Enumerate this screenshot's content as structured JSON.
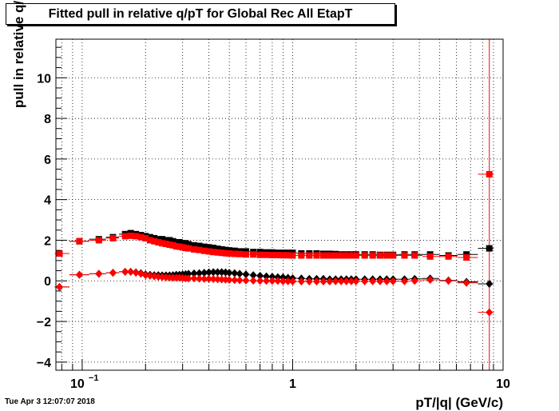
{
  "chart_data": {
    "type": "scatter",
    "title": "Fitted pull in relative q/pT for Global Rec All EtapT",
    "xlabel": "pT/|q| (GeV/c)",
    "ylabel": "pull in relative q/pT",
    "x_scale": "log",
    "xlim": [
      0.075,
      10
    ],
    "ylim": [
      -4.4,
      11.9
    ],
    "grid": true,
    "x_ticks": [
      {
        "value": 0.1,
        "label": "10",
        "sup": "−1"
      },
      {
        "value": 1,
        "label": "1"
      },
      {
        "value": 10,
        "label": "10"
      }
    ],
    "y_ticks": [
      -4,
      -2,
      0,
      2,
      4,
      6,
      8,
      10
    ],
    "timestamp": "Tue Apr  3 12:07:07 2018",
    "series": [
      {
        "color": "#000000",
        "marker": "square",
        "x": [
          0.078,
          0.097,
          0.12,
          0.14,
          0.16,
          0.17,
          0.18,
          0.19,
          0.2,
          0.21,
          0.22,
          0.23,
          0.24,
          0.25,
          0.26,
          0.27,
          0.28,
          0.29,
          0.3,
          0.31,
          0.32,
          0.34,
          0.36,
          0.38,
          0.4,
          0.42,
          0.44,
          0.46,
          0.48,
          0.5,
          0.53,
          0.56,
          0.6,
          0.65,
          0.7,
          0.75,
          0.8,
          0.85,
          0.9,
          0.95,
          1.0,
          1.1,
          1.2,
          1.3,
          1.4,
          1.5,
          1.6,
          1.7,
          1.8,
          1.9,
          2.0,
          2.2,
          2.4,
          2.6,
          2.8,
          3.0,
          3.4,
          3.8,
          4.5,
          5.5,
          6.7,
          8.6
        ],
        "y": [
          1.35,
          1.95,
          2.05,
          2.15,
          2.3,
          2.35,
          2.3,
          2.25,
          2.2,
          2.15,
          2.1,
          2.05,
          2.05,
          2.0,
          2.0,
          1.95,
          1.9,
          1.9,
          1.85,
          1.85,
          1.8,
          1.75,
          1.72,
          1.68,
          1.65,
          1.62,
          1.58,
          1.55,
          1.52,
          1.5,
          1.48,
          1.45,
          1.45,
          1.42,
          1.42,
          1.4,
          1.4,
          1.38,
          1.38,
          1.38,
          1.38,
          1.35,
          1.35,
          1.35,
          1.33,
          1.33,
          1.32,
          1.3,
          1.3,
          1.3,
          1.3,
          1.3,
          1.3,
          1.28,
          1.28,
          1.28,
          1.3,
          1.3,
          1.3,
          1.25,
          1.3,
          1.6
        ]
      },
      {
        "color": "#ff0000",
        "marker": "square",
        "x": [
          0.078,
          0.097,
          0.12,
          0.14,
          0.16,
          0.17,
          0.18,
          0.19,
          0.2,
          0.21,
          0.22,
          0.23,
          0.24,
          0.25,
          0.26,
          0.27,
          0.28,
          0.29,
          0.3,
          0.31,
          0.32,
          0.34,
          0.36,
          0.38,
          0.4,
          0.42,
          0.44,
          0.46,
          0.48,
          0.5,
          0.53,
          0.56,
          0.6,
          0.65,
          0.7,
          0.75,
          0.8,
          0.85,
          0.9,
          0.95,
          1.0,
          1.1,
          1.2,
          1.3,
          1.4,
          1.5,
          1.6,
          1.7,
          1.8,
          1.9,
          2.0,
          2.2,
          2.4,
          2.6,
          2.8,
          3.0,
          3.4,
          3.8,
          4.5,
          5.5,
          6.7,
          8.6
        ],
        "y": [
          1.35,
          1.95,
          2.0,
          2.1,
          2.2,
          2.22,
          2.2,
          2.15,
          2.1,
          2.0,
          1.95,
          1.9,
          1.85,
          1.82,
          1.78,
          1.75,
          1.7,
          1.68,
          1.65,
          1.62,
          1.6,
          1.55,
          1.52,
          1.48,
          1.45,
          1.42,
          1.4,
          1.38,
          1.36,
          1.35,
          1.33,
          1.32,
          1.3,
          1.3,
          1.28,
          1.28,
          1.27,
          1.27,
          1.26,
          1.26,
          1.25,
          1.25,
          1.25,
          1.25,
          1.25,
          1.25,
          1.25,
          1.25,
          1.25,
          1.25,
          1.25,
          1.25,
          1.25,
          1.25,
          1.25,
          1.25,
          1.25,
          1.25,
          1.2,
          1.2,
          1.15,
          5.25
        ]
      },
      {
        "color": "#000000",
        "marker": "diamond",
        "x": [
          0.078,
          0.097,
          0.12,
          0.14,
          0.16,
          0.17,
          0.18,
          0.19,
          0.2,
          0.21,
          0.22,
          0.23,
          0.24,
          0.25,
          0.26,
          0.27,
          0.28,
          0.29,
          0.3,
          0.31,
          0.32,
          0.34,
          0.36,
          0.38,
          0.4,
          0.42,
          0.44,
          0.46,
          0.48,
          0.5,
          0.53,
          0.56,
          0.6,
          0.65,
          0.7,
          0.75,
          0.8,
          0.85,
          0.9,
          0.95,
          1.0,
          1.1,
          1.2,
          1.3,
          1.4,
          1.5,
          1.6,
          1.7,
          1.8,
          1.9,
          2.0,
          2.2,
          2.4,
          2.6,
          2.8,
          3.0,
          3.4,
          3.8,
          4.5,
          5.5,
          6.7,
          8.6
        ],
        "y": [
          -0.3,
          0.3,
          0.35,
          0.4,
          0.45,
          0.45,
          0.42,
          0.38,
          0.32,
          0.3,
          0.28,
          0.28,
          0.27,
          0.27,
          0.27,
          0.28,
          0.3,
          0.3,
          0.32,
          0.33,
          0.35,
          0.37,
          0.38,
          0.4,
          0.42,
          0.43,
          0.43,
          0.43,
          0.42,
          0.4,
          0.38,
          0.35,
          0.32,
          0.28,
          0.25,
          0.22,
          0.2,
          0.18,
          0.17,
          0.15,
          0.13,
          0.12,
          0.1,
          0.1,
          0.1,
          0.08,
          0.08,
          0.08,
          0.08,
          0.08,
          0.08,
          0.08,
          0.08,
          0.08,
          0.08,
          0.08,
          0.08,
          0.1,
          0.12,
          0.02,
          -0.05,
          -0.15
        ]
      },
      {
        "color": "#ff0000",
        "marker": "diamond",
        "x": [
          0.078,
          0.097,
          0.12,
          0.14,
          0.16,
          0.17,
          0.18,
          0.19,
          0.2,
          0.21,
          0.22,
          0.23,
          0.24,
          0.25,
          0.26,
          0.27,
          0.28,
          0.29,
          0.3,
          0.31,
          0.32,
          0.34,
          0.36,
          0.38,
          0.4,
          0.42,
          0.44,
          0.46,
          0.48,
          0.5,
          0.53,
          0.56,
          0.6,
          0.65,
          0.7,
          0.75,
          0.8,
          0.85,
          0.9,
          0.95,
          1.0,
          1.1,
          1.2,
          1.3,
          1.4,
          1.5,
          1.6,
          1.7,
          1.8,
          1.9,
          2.0,
          2.2,
          2.4,
          2.6,
          2.8,
          3.0,
          3.4,
          3.8,
          4.5,
          5.5,
          6.7,
          8.6
        ],
        "y": [
          -0.3,
          0.3,
          0.35,
          0.4,
          0.45,
          0.45,
          0.4,
          0.35,
          0.28,
          0.25,
          0.22,
          0.2,
          0.18,
          0.17,
          0.16,
          0.15,
          0.15,
          0.15,
          0.14,
          0.13,
          0.12,
          0.12,
          0.11,
          0.1,
          0.1,
          0.09,
          0.08,
          0.07,
          0.06,
          0.05,
          0.04,
          0.03,
          0.02,
          0.01,
          0.0,
          0.0,
          0.0,
          0.0,
          -0.02,
          -0.02,
          -0.03,
          -0.03,
          -0.03,
          -0.03,
          -0.03,
          -0.03,
          -0.02,
          -0.02,
          -0.02,
          -0.02,
          -0.02,
          -0.02,
          -0.02,
          -0.02,
          -0.02,
          -0.02,
          -0.02,
          0.0,
          0.05,
          0.0,
          -0.1,
          -1.55
        ]
      }
    ]
  }
}
